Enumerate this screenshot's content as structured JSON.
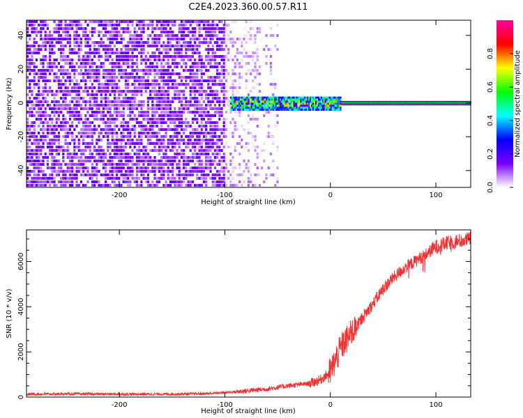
{
  "title": "C2E4.2023.360.00.57.R11",
  "chart_data": [
    {
      "type": "heatmap",
      "xlabel": "Height of straight line (km)",
      "ylabel": "Frequency (Hz)",
      "xlim": [
        -288,
        133
      ],
      "ylim": [
        -50,
        49
      ],
      "xticks": [
        -200,
        -100,
        0,
        100
      ],
      "yticks": [
        -40,
        -20,
        0,
        20,
        40
      ],
      "colorbar": {
        "label": "Normalized spectral amplitude",
        "range": [
          0,
          1
        ],
        "ticks": [
          0.0,
          0.2,
          0.4,
          0.6,
          0.8
        ],
        "colors": [
          "#ffffff",
          "#7a00ff",
          "#0000ff",
          "#00ffff",
          "#00ff00",
          "#ffff00",
          "#ff0000",
          "#ff00a0"
        ]
      },
      "regions": [
        {
          "x_range": [
            -288,
            -100
          ],
          "freq_range": [
            -50,
            49
          ],
          "description": "broadband noise",
          "amplitude_range": [
            0.02,
            0.12
          ]
        },
        {
          "x_range": [
            -100,
            -55
          ],
          "freq_range": [
            -50,
            49
          ],
          "description": "sparse noise",
          "amplitude_range": [
            0.01,
            0.06
          ]
        },
        {
          "x_range": [
            -95,
            10
          ],
          "freq_range": [
            -4,
            4
          ],
          "description": "narrowband signal onset",
          "amplitude_range": [
            0.2,
            0.9
          ]
        },
        {
          "x_range": [
            10,
            133
          ],
          "freq_range": [
            -1,
            1
          ],
          "description": "steady carrier",
          "amplitude_range": [
            0.9,
            1.0
          ]
        }
      ]
    },
    {
      "type": "line",
      "xlabel": "Height of straight line (km)",
      "ylabel": "SNR (10 * v/v)",
      "xlim": [
        -288,
        133
      ],
      "ylim": [
        0,
        7400
      ],
      "xticks": [
        -200,
        -100,
        0,
        100
      ],
      "yticks": [
        0,
        2000,
        4000,
        6000
      ],
      "color": "#ee3333",
      "series": [
        {
          "x": [
            -288,
            -250,
            -200,
            -150,
            -120,
            -100,
            -80,
            -60,
            -40,
            -20,
            -10,
            0,
            10,
            20,
            30,
            40,
            50,
            60,
            70,
            80,
            90,
            100,
            110,
            120,
            133
          ],
          "y": [
            130,
            140,
            130,
            130,
            150,
            200,
            270,
            360,
            500,
            600,
            750,
            1100,
            2200,
            2800,
            3500,
            4100,
            4800,
            5300,
            5700,
            6000,
            6300,
            6650,
            6800,
            6900,
            7000
          ]
        }
      ]
    }
  ]
}
